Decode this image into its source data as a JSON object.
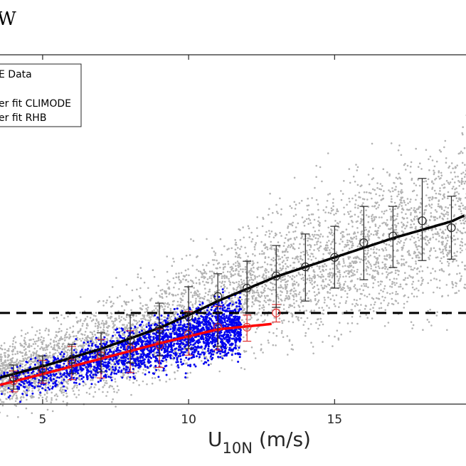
{
  "title_fragment": "W",
  "legend": {
    "placement": "top-left",
    "entries": [
      "E Data",
      "",
      "er fit CLIMODE",
      "er fit RHB"
    ]
  },
  "chart_data": {
    "type": "scatter",
    "title": "",
    "xlabel_main": "U",
    "xlabel_sub": "10N",
    "xlabel_unit": " (m/s)",
    "ylabel": "",
    "xlim": [
      3.54,
      19.5
    ],
    "ylim": [
      0,
      100
    ],
    "y_units_note": "arbitrary (y axis cropped)",
    "x_ticks": [
      5,
      10,
      15
    ],
    "x_tick_labels": [
      "5",
      "10",
      "15"
    ],
    "colors": {
      "gray": "#b3b3b3",
      "blue": "#0000ee",
      "black": "#000000",
      "red": "#ff0000"
    },
    "reference_line": {
      "y": 26.1,
      "style": "dashed",
      "color": "#000000"
    },
    "scatter_gray": {
      "n": 6000,
      "x_range": [
        2,
        20
      ],
      "spread": 9
    },
    "scatter_blue": {
      "n": 2200,
      "x_range": [
        3,
        11.8
      ],
      "spread": 4.5
    },
    "binned_black": {
      "x": [
        4,
        5,
        6,
        7,
        8,
        9,
        10,
        11,
        12,
        13,
        14,
        15,
        16,
        17,
        18,
        19
      ],
      "mean": [
        7.7,
        10.2,
        12.8,
        14.9,
        18.3,
        21.4,
        25.1,
        30.8,
        33.2,
        36.7,
        39.3,
        42.0,
        46.2,
        48.1,
        52.5,
        50.5
      ],
      "lower": [
        4.3,
        6.7,
        8.8,
        9.2,
        11.8,
        13.8,
        15.9,
        16.5,
        26.1,
        27.7,
        29.5,
        33.2,
        35.6,
        39.1,
        41.1,
        41.5
      ],
      "upper": [
        11.2,
        13.8,
        17.1,
        20.4,
        25.5,
        28.9,
        33.6,
        37.3,
        40.9,
        45.4,
        48.7,
        50.9,
        56.6,
        56.6,
        64.6,
        59.5
      ]
    },
    "binned_red": {
      "x": [
        4,
        5,
        6,
        7,
        8,
        9,
        10,
        11,
        12,
        13
      ],
      "mean": [
        6.7,
        9.4,
        11.8,
        13.8,
        15.9,
        16.9,
        20.0,
        22.0,
        22.0,
        26.1
      ],
      "lower": [
        3.5,
        6.0,
        7.0,
        7.5,
        9.0,
        10.5,
        14.0,
        15.5,
        18.0,
        23.5
      ],
      "upper": [
        9.5,
        12.5,
        16.5,
        18.5,
        21.0,
        21.5,
        26.5,
        28.0,
        25.5,
        28.5
      ]
    },
    "fit_climode": {
      "name": "fit CLIMODE",
      "x": [
        3.54,
        5,
        7,
        9,
        10,
        11,
        13,
        15,
        17,
        19,
        19.5
      ],
      "y": [
        7.6,
        10.8,
        15.8,
        21.8,
        25.5,
        29.5,
        36.5,
        42.0,
        47.5,
        52.3,
        54.2
      ]
    },
    "fit_rhb": {
      "name": "fit RHB",
      "x": [
        3.54,
        5,
        7,
        9,
        11,
        12.9
      ],
      "y": [
        5.5,
        8.6,
        13.0,
        17.4,
        21.4,
        23.0
      ]
    }
  }
}
